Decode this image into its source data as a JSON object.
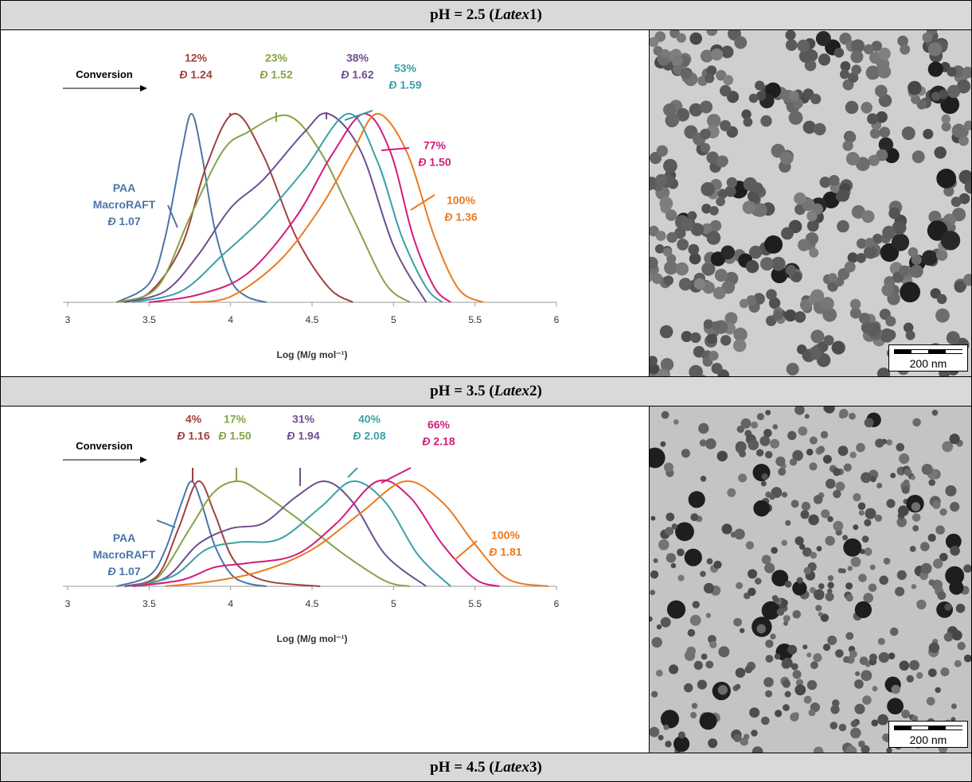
{
  "panels": [
    {
      "header": {
        "prefix": "pH = 2.5 (",
        "latex_word": "Latex",
        "suffix": " 1)"
      },
      "scale_bar_label": "200 nm"
    },
    {
      "header": {
        "prefix": "pH = 3.5 (",
        "latex_word": "Latex",
        "suffix": " 2)"
      },
      "scale_bar_label": "200 nm"
    },
    {
      "header": {
        "prefix": "pH = 4.5 (",
        "latex_word": "Latex",
        "suffix": " 3)"
      }
    }
  ],
  "chart_data": [
    {
      "type": "line",
      "title": "",
      "xlabel": "Log (M/g mol⁻¹)",
      "ylabel": "",
      "xlim": [
        3,
        6
      ],
      "xticks": [
        "3",
        "3.5",
        "4",
        "4.5",
        "5",
        "5.5",
        "6"
      ],
      "grid": false,
      "arrow_label": "Conversion",
      "series": [
        {
          "name": "PAA MacroRAFT",
          "label_lines": [
            "PAA",
            "MacroRAFT",
            "Đ 1.07"
          ],
          "color": "#4a76a8",
          "x": [
            3.3,
            3.5,
            3.6,
            3.7,
            3.76,
            3.82,
            3.9,
            4.0,
            4.1,
            4.22
          ],
          "y": [
            0,
            0.1,
            0.35,
            0.8,
            1.0,
            0.8,
            0.4,
            0.12,
            0.03,
            0
          ]
        },
        {
          "name": "12%",
          "label_lines": [
            "12%",
            "Đ 1.24"
          ],
          "color": "#a0413c",
          "x": [
            3.3,
            3.5,
            3.7,
            3.85,
            4.02,
            4.2,
            4.4,
            4.6,
            4.75
          ],
          "y": [
            0,
            0.05,
            0.3,
            0.72,
            1.0,
            0.78,
            0.35,
            0.08,
            0
          ]
        },
        {
          "name": "23%",
          "label_lines": [
            "23%",
            "Đ 1.52"
          ],
          "color": "#86a346",
          "x": [
            3.3,
            3.55,
            3.75,
            3.95,
            4.1,
            4.35,
            4.55,
            4.75,
            4.95,
            5.1
          ],
          "y": [
            0,
            0.08,
            0.45,
            0.8,
            0.9,
            0.99,
            0.8,
            0.45,
            0.1,
            0
          ]
        },
        {
          "name": "38%",
          "label_lines": [
            "38%",
            "Đ 1.62"
          ],
          "color": "#6e4f8f",
          "x": [
            3.35,
            3.6,
            3.8,
            4.0,
            4.2,
            4.45,
            4.6,
            4.8,
            5.0,
            5.2
          ],
          "y": [
            0,
            0.06,
            0.25,
            0.5,
            0.65,
            0.9,
            1.0,
            0.8,
            0.3,
            0
          ]
        },
        {
          "name": "53%",
          "label_lines": [
            "53%",
            "Đ 1.59"
          ],
          "color": "#3aa0a8",
          "x": [
            3.4,
            3.7,
            3.95,
            4.2,
            4.45,
            4.72,
            4.9,
            5.05,
            5.2,
            5.3
          ],
          "y": [
            0,
            0.06,
            0.25,
            0.45,
            0.7,
            1.0,
            0.75,
            0.35,
            0.08,
            0
          ]
        },
        {
          "name": "77%",
          "label_lines": [
            "77%",
            "Đ 1.50"
          ],
          "color": "#d21c7c",
          "x": [
            3.5,
            3.8,
            4.1,
            4.4,
            4.62,
            4.82,
            4.98,
            5.12,
            5.25,
            5.35
          ],
          "y": [
            0,
            0.04,
            0.15,
            0.45,
            0.78,
            1.0,
            0.8,
            0.35,
            0.08,
            0
          ]
        },
        {
          "name": "100%",
          "label_lines": [
            "100%",
            "Đ 1.36"
          ],
          "color": "#ea7a1e",
          "x": [
            3.75,
            4.0,
            4.3,
            4.55,
            4.75,
            4.9,
            5.08,
            5.25,
            5.4,
            5.55
          ],
          "y": [
            0,
            0.03,
            0.22,
            0.5,
            0.8,
            1.0,
            0.8,
            0.35,
            0.07,
            0
          ]
        }
      ]
    },
    {
      "type": "line",
      "title": "",
      "xlabel": "Log (M/g mol⁻¹)",
      "ylabel": "",
      "xlim": [
        3,
        6
      ],
      "xticks": [
        "3",
        "3.5",
        "4",
        "4.5",
        "5",
        "5.5",
        "6"
      ],
      "grid": false,
      "arrow_label": "Conversion",
      "series": [
        {
          "name": "PAA MacroRAFT",
          "label_lines": [
            "PAA",
            "MacroRAFT",
            "Đ 1.07"
          ],
          "color": "#4a76a8",
          "x": [
            3.3,
            3.5,
            3.6,
            3.7,
            3.76,
            3.82,
            3.9,
            4.0,
            4.1,
            4.22
          ],
          "y": [
            0,
            0.1,
            0.35,
            0.8,
            1.0,
            0.8,
            0.4,
            0.12,
            0.03,
            0
          ]
        },
        {
          "name": "4%",
          "label_lines": [
            "4%",
            "Đ 1.16"
          ],
          "color": "#a0413c",
          "x": [
            3.35,
            3.55,
            3.68,
            3.8,
            3.9,
            4.0,
            4.1,
            4.25,
            4.55
          ],
          "y": [
            0,
            0.1,
            0.55,
            1.0,
            0.7,
            0.3,
            0.13,
            0.04,
            0
          ]
        },
        {
          "name": "17%",
          "label_lines": [
            "17%",
            "Đ 1.50"
          ],
          "color": "#86a346",
          "x": [
            3.35,
            3.55,
            3.75,
            3.9,
            4.05,
            4.2,
            4.45,
            4.7,
            4.95,
            5.1
          ],
          "y": [
            0,
            0.08,
            0.55,
            0.9,
            1.0,
            0.88,
            0.6,
            0.3,
            0.05,
            0
          ]
        },
        {
          "name": "31%",
          "label_lines": [
            "31%",
            "Đ 1.94"
          ],
          "color": "#6e4f8f",
          "x": [
            3.35,
            3.6,
            3.8,
            4.0,
            4.2,
            4.4,
            4.58,
            4.75,
            4.95,
            5.2
          ],
          "y": [
            0,
            0.08,
            0.4,
            0.55,
            0.6,
            0.85,
            1.0,
            0.8,
            0.3,
            0
          ]
        },
        {
          "name": "40%",
          "label_lines": [
            "40%",
            "Đ 2.08"
          ],
          "color": "#3aa0a8",
          "x": [
            3.4,
            3.65,
            3.85,
            4.05,
            4.3,
            4.55,
            4.75,
            4.95,
            5.15,
            5.35
          ],
          "y": [
            0,
            0.1,
            0.35,
            0.42,
            0.45,
            0.75,
            1.0,
            0.8,
            0.3,
            0
          ]
        },
        {
          "name": "66%",
          "label_lines": [
            "66%",
            "Đ 2.18"
          ],
          "color": "#d21c7c",
          "x": [
            3.4,
            3.7,
            3.9,
            4.1,
            4.4,
            4.65,
            4.9,
            5.1,
            5.3,
            5.5,
            5.65
          ],
          "y": [
            0,
            0.06,
            0.18,
            0.22,
            0.3,
            0.6,
            1.0,
            0.85,
            0.4,
            0.07,
            0
          ]
        },
        {
          "name": "100%",
          "label_lines": [
            "100%",
            "Đ 1.81"
          ],
          "color": "#ea7a1e",
          "x": [
            3.6,
            3.9,
            4.2,
            4.5,
            4.8,
            5.07,
            5.3,
            5.5,
            5.7,
            5.95
          ],
          "y": [
            0,
            0.05,
            0.15,
            0.35,
            0.7,
            1.0,
            0.8,
            0.4,
            0.07,
            0
          ]
        }
      ]
    }
  ]
}
